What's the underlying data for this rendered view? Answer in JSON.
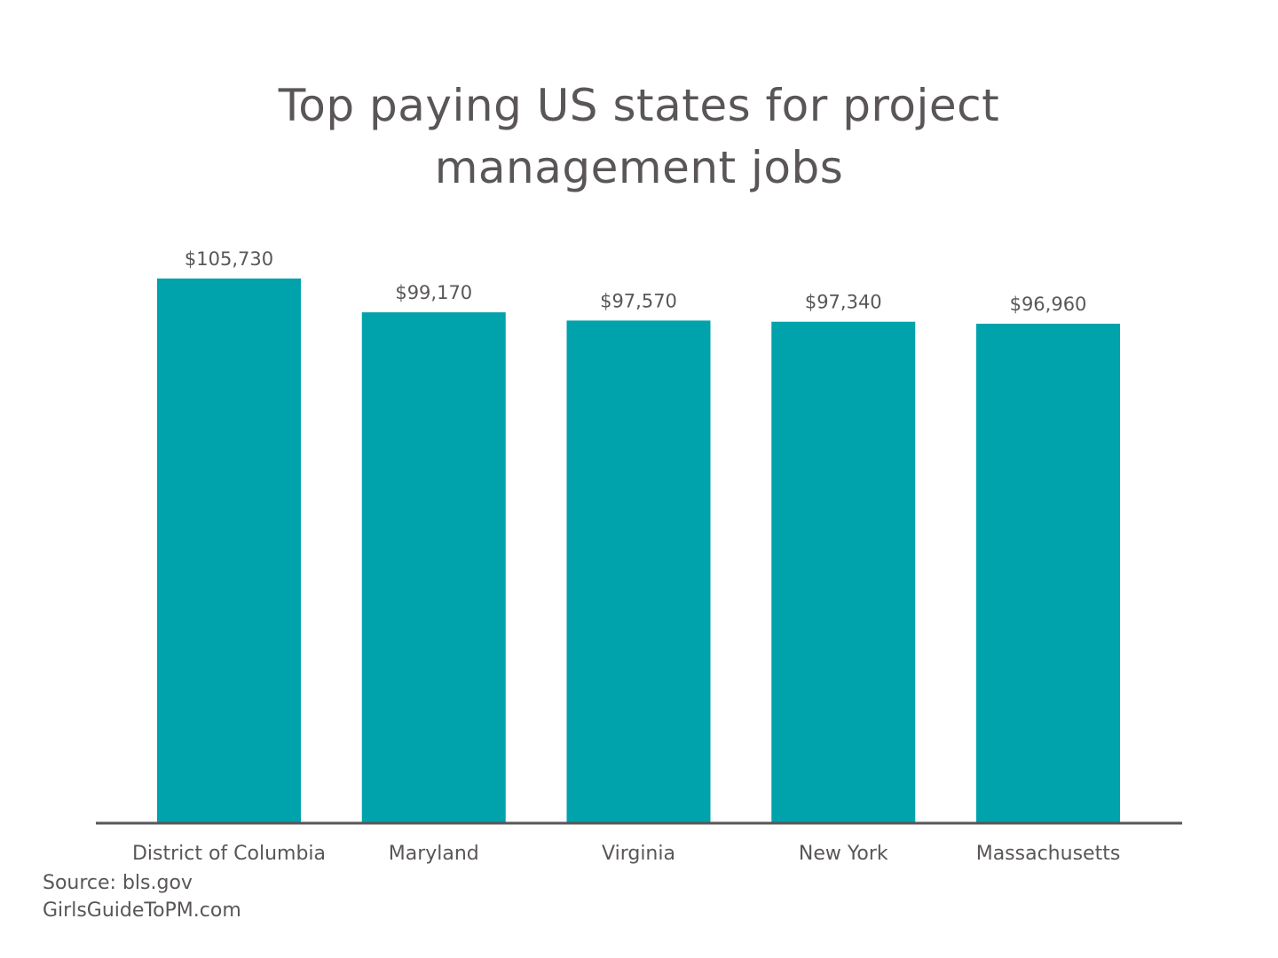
{
  "chart_data": {
    "type": "bar",
    "title_lines": [
      "Top paying US states for project",
      "management jobs"
    ],
    "categories": [
      "District of Columbia",
      "Maryland",
      "Virginia",
      "New York",
      "Massachusetts"
    ],
    "values": [
      105730,
      99170,
      97570,
      97340,
      96960
    ],
    "value_labels": [
      "$105,730",
      "$99,170",
      "$97,570",
      "$97,340",
      "$96,960"
    ],
    "xlabel": "",
    "ylabel": "",
    "ylim": [
      0,
      105730
    ],
    "grid": false,
    "legend": "none",
    "colors": {
      "bar": "#00a2ac",
      "text": "#5a5657",
      "axis": "#5a5657"
    }
  },
  "footer": {
    "source": "Source: bls.gov",
    "site": "GirlsGuideToPM.com"
  }
}
